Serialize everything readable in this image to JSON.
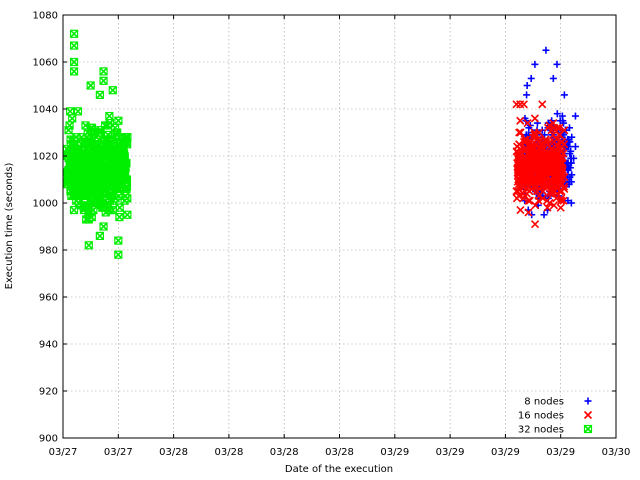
{
  "chart_data": {
    "type": "scatter",
    "title": "",
    "xlabel": "Date of the execution",
    "ylabel": "Execution time (seconds)",
    "ylim": [
      900,
      1080
    ],
    "yticks": [
      900,
      920,
      940,
      960,
      980,
      1000,
      1020,
      1040,
      1060,
      1080
    ],
    "xlim": [
      0,
      3
    ],
    "xtick_values": [
      0,
      0.3,
      0.6,
      0.9,
      1.2,
      1.5,
      1.8,
      2.1,
      2.4,
      2.7,
      3.0
    ],
    "xtick_labels": [
      "03/27",
      "03/27",
      "03/28",
      "03/28",
      "03/28",
      "03/28",
      "03/29",
      "03/29",
      "03/29",
      "03/29",
      "03/30"
    ],
    "legend_position": "bottom-right",
    "series": [
      {
        "name": "8 nodes",
        "marker": "plus",
        "color": "#0000ff",
        "cluster": {
          "x_min": 2.5,
          "x_max": 2.76,
          "y_center": 1018,
          "y_spread": 12,
          "count": 320,
          "seed": 11
        },
        "extra": [
          {
            "x": 2.62,
            "y": 1065
          },
          {
            "x": 2.56,
            "y": 1059
          },
          {
            "x": 2.68,
            "y": 1059
          },
          {
            "x": 2.66,
            "y": 1053
          },
          {
            "x": 2.54,
            "y": 1053
          },
          {
            "x": 2.72,
            "y": 1046
          },
          {
            "x": 2.78,
            "y": 1037
          },
          {
            "x": 2.76,
            "y": 1028
          },
          {
            "x": 2.75,
            "y": 1011
          },
          {
            "x": 2.69,
            "y": 1003
          },
          {
            "x": 2.78,
            "y": 1024
          },
          {
            "x": 2.77,
            "y": 1019
          }
        ]
      },
      {
        "name": "16 nodes",
        "marker": "cross",
        "color": "#ff0000",
        "cluster": {
          "x_min": 2.46,
          "x_max": 2.72,
          "y_center": 1016,
          "y_spread": 9,
          "count": 420,
          "seed": 23
        },
        "extra": [
          {
            "x": 2.46,
            "y": 1042
          },
          {
            "x": 2.48,
            "y": 1042
          },
          {
            "x": 2.5,
            "y": 1042
          },
          {
            "x": 2.6,
            "y": 1042
          },
          {
            "x": 2.56,
            "y": 1036
          },
          {
            "x": 2.52,
            "y": 1034
          },
          {
            "x": 2.66,
            "y": 1032
          },
          {
            "x": 2.46,
            "y": 1005
          },
          {
            "x": 2.58,
            "y": 1001
          },
          {
            "x": 2.7,
            "y": 998
          }
        ]
      },
      {
        "name": "32 nodes",
        "marker": "box-cross",
        "color": "#00ee00",
        "cluster": {
          "x_min": 0.02,
          "x_max": 0.35,
          "y_center": 1014,
          "y_spread": 11,
          "count": 520,
          "seed": 37
        },
        "extra": [
          {
            "x": 0.06,
            "y": 1072
          },
          {
            "x": 0.06,
            "y": 1067
          },
          {
            "x": 0.06,
            "y": 1060
          },
          {
            "x": 0.06,
            "y": 1056
          },
          {
            "x": 0.22,
            "y": 1056
          },
          {
            "x": 0.22,
            "y": 1052
          },
          {
            "x": 0.15,
            "y": 1050
          },
          {
            "x": 0.27,
            "y": 1048
          },
          {
            "x": 0.2,
            "y": 1046
          },
          {
            "x": 0.05,
            "y": 1036
          },
          {
            "x": 0.2,
            "y": 1030
          },
          {
            "x": 0.14,
            "y": 993
          },
          {
            "x": 0.14,
            "y": 982
          },
          {
            "x": 0.2,
            "y": 986
          },
          {
            "x": 0.3,
            "y": 978
          },
          {
            "x": 0.3,
            "y": 984
          },
          {
            "x": 0.22,
            "y": 990
          },
          {
            "x": 0.1,
            "y": 999
          }
        ]
      }
    ]
  }
}
